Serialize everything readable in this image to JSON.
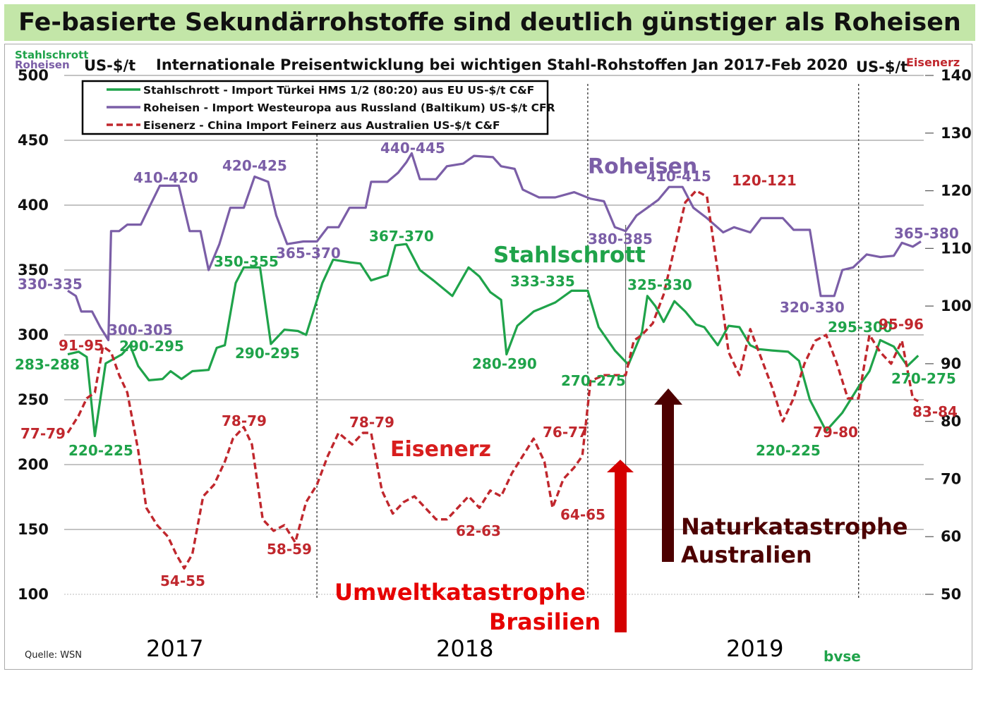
{
  "banner": {
    "title": "Fe-basierte Sekundärrohstoffe sind deutlich günstiger als Roheisen"
  },
  "chart_data": {
    "type": "line",
    "title": "Internationale Preisentwicklung bei wichtigen Stahl-Rohstoffen  Jan 2017-Feb 2020",
    "left_axis": {
      "series_tags": [
        "Stahlschrott",
        "Roheisen"
      ],
      "unit": "US-$/t",
      "range": [
        100,
        500
      ],
      "ticks": [
        "100",
        "150",
        "200",
        "250",
        "300",
        "350",
        "400",
        "450",
        "500"
      ]
    },
    "right_axis": {
      "series_tag": "Eisenerz",
      "unit": "US-$/t",
      "range": [
        50,
        140
      ],
      "ticks": [
        "50",
        "60",
        "70",
        "80",
        "90",
        "100",
        "110",
        "120",
        "130",
        "140"
      ]
    },
    "x": {
      "start": 2017.0,
      "end": 2020.15,
      "year_labels": [
        "2017",
        "2018",
        "2019"
      ]
    },
    "legend_entries": [
      "Stahlschrott - Import Türkei HMS 1/2 (80:20) aus EU US-$/t C&F",
      "Roheisen - Import Westeuropa aus Russland (Baltikum) US-$/t CFR",
      "Eisenerz - China Import Feinerz aus Australien US-$/t C&F"
    ],
    "series": [
      {
        "name": "Stahlschrott",
        "axis": "left",
        "color": "#1fa34a",
        "style": "solid",
        "points": [
          [
            2017.0,
            285
          ],
          [
            2017.04,
            287
          ],
          [
            2017.07,
            283
          ],
          [
            2017.1,
            222
          ],
          [
            2017.14,
            278
          ],
          [
            2017.2,
            285
          ],
          [
            2017.23,
            292
          ],
          [
            2017.26,
            276
          ],
          [
            2017.3,
            265
          ],
          [
            2017.35,
            266
          ],
          [
            2017.38,
            272
          ],
          [
            2017.42,
            266
          ],
          [
            2017.46,
            272
          ],
          [
            2017.52,
            273
          ],
          [
            2017.55,
            290
          ],
          [
            2017.58,
            292
          ],
          [
            2017.62,
            340
          ],
          [
            2017.65,
            352
          ],
          [
            2017.71,
            352
          ],
          [
            2017.75,
            293
          ],
          [
            2017.8,
            304
          ],
          [
            2017.85,
            303
          ],
          [
            2017.88,
            300
          ],
          [
            2017.94,
            340
          ],
          [
            2017.98,
            358
          ],
          [
            2018.04,
            356
          ],
          [
            2018.08,
            355
          ],
          [
            2018.12,
            342
          ],
          [
            2018.18,
            346
          ],
          [
            2018.21,
            369
          ],
          [
            2018.25,
            370
          ],
          [
            2018.3,
            350
          ],
          [
            2018.35,
            342
          ],
          [
            2018.42,
            330
          ],
          [
            2018.48,
            352
          ],
          [
            2018.52,
            345
          ],
          [
            2018.56,
            333
          ],
          [
            2018.6,
            327
          ],
          [
            2018.62,
            285
          ],
          [
            2018.66,
            307
          ],
          [
            2018.72,
            318
          ],
          [
            2018.8,
            325
          ],
          [
            2018.86,
            334
          ],
          [
            2018.92,
            334
          ],
          [
            2018.96,
            306
          ],
          [
            2019.02,
            288
          ],
          [
            2019.07,
            277
          ],
          [
            2019.12,
            302
          ],
          [
            2019.14,
            330
          ],
          [
            2019.17,
            322
          ],
          [
            2019.2,
            310
          ],
          [
            2019.24,
            326
          ],
          [
            2019.28,
            318
          ],
          [
            2019.32,
            308
          ],
          [
            2019.35,
            306
          ],
          [
            2019.4,
            292
          ],
          [
            2019.44,
            307
          ],
          [
            2019.48,
            306
          ],
          [
            2019.52,
            292
          ],
          [
            2019.55,
            289
          ],
          [
            2019.6,
            288
          ],
          [
            2019.66,
            287
          ],
          [
            2019.7,
            280
          ],
          [
            2019.74,
            250
          ],
          [
            2019.8,
            226
          ],
          [
            2019.86,
            240
          ],
          [
            2019.92,
            260
          ],
          [
            2019.96,
            272
          ],
          [
            2020.0,
            296
          ],
          [
            2020.05,
            291
          ],
          [
            2020.1,
            276
          ],
          [
            2020.14,
            284
          ]
        ]
      },
      {
        "name": "Roheisen",
        "axis": "left",
        "color": "#7b5ea7",
        "style": "solid",
        "points": [
          [
            2017.0,
            334
          ],
          [
            2017.03,
            330
          ],
          [
            2017.05,
            318
          ],
          [
            2017.09,
            318
          ],
          [
            2017.12,
            306
          ],
          [
            2017.15,
            296
          ],
          [
            2017.16,
            380
          ],
          [
            2017.19,
            380
          ],
          [
            2017.22,
            385
          ],
          [
            2017.27,
            385
          ],
          [
            2017.3,
            398
          ],
          [
            2017.34,
            415
          ],
          [
            2017.41,
            415
          ],
          [
            2017.45,
            380
          ],
          [
            2017.49,
            380
          ],
          [
            2017.52,
            350
          ],
          [
            2017.56,
            370
          ],
          [
            2017.6,
            398
          ],
          [
            2017.65,
            398
          ],
          [
            2017.69,
            422
          ],
          [
            2017.74,
            418
          ],
          [
            2017.77,
            392
          ],
          [
            2017.81,
            370
          ],
          [
            2017.87,
            372
          ],
          [
            2017.92,
            372
          ],
          [
            2017.96,
            383
          ],
          [
            2018.0,
            383
          ],
          [
            2018.04,
            398
          ],
          [
            2018.1,
            398
          ],
          [
            2018.12,
            418
          ],
          [
            2018.18,
            418
          ],
          [
            2018.22,
            425
          ],
          [
            2018.25,
            433
          ],
          [
            2018.27,
            440
          ],
          [
            2018.3,
            420
          ],
          [
            2018.36,
            420
          ],
          [
            2018.4,
            430
          ],
          [
            2018.46,
            432
          ],
          [
            2018.5,
            438
          ],
          [
            2018.57,
            437
          ],
          [
            2018.6,
            430
          ],
          [
            2018.65,
            428
          ],
          [
            2018.68,
            412
          ],
          [
            2018.74,
            406
          ],
          [
            2018.8,
            406
          ],
          [
            2018.87,
            410
          ],
          [
            2018.93,
            405
          ],
          [
            2018.98,
            403
          ],
          [
            2019.02,
            383
          ],
          [
            2019.06,
            380
          ],
          [
            2019.1,
            392
          ],
          [
            2019.14,
            398
          ],
          [
            2019.18,
            404
          ],
          [
            2019.22,
            414
          ],
          [
            2019.27,
            414
          ],
          [
            2019.31,
            398
          ],
          [
            2019.36,
            390
          ],
          [
            2019.42,
            379
          ],
          [
            2019.46,
            383
          ],
          [
            2019.52,
            379
          ],
          [
            2019.56,
            390
          ],
          [
            2019.64,
            390
          ],
          [
            2019.68,
            381
          ],
          [
            2019.74,
            381
          ],
          [
            2019.78,
            330
          ],
          [
            2019.83,
            330
          ],
          [
            2019.86,
            350
          ],
          [
            2019.9,
            352
          ],
          [
            2019.95,
            362
          ],
          [
            2020.0,
            360
          ],
          [
            2020.05,
            361
          ],
          [
            2020.08,
            371
          ],
          [
            2020.12,
            368
          ],
          [
            2020.15,
            372
          ]
        ]
      },
      {
        "name": "Eisenerz",
        "axis": "right",
        "color": "#c0272d",
        "style": "dashed",
        "points": [
          [
            2017.0,
            78
          ],
          [
            2017.04,
            81
          ],
          [
            2017.07,
            84
          ],
          [
            2017.1,
            85
          ],
          [
            2017.13,
            93
          ],
          [
            2017.16,
            92
          ],
          [
            2017.19,
            88
          ],
          [
            2017.22,
            85
          ],
          [
            2017.26,
            75
          ],
          [
            2017.29,
            65
          ],
          [
            2017.33,
            62
          ],
          [
            2017.37,
            60
          ],
          [
            2017.4,
            57
          ],
          [
            2017.43,
            54.5
          ],
          [
            2017.46,
            57
          ],
          [
            2017.5,
            67
          ],
          [
            2017.54,
            69
          ],
          [
            2017.58,
            73
          ],
          [
            2017.61,
            77
          ],
          [
            2017.65,
            79
          ],
          [
            2017.68,
            76
          ],
          [
            2017.72,
            63
          ],
          [
            2017.76,
            61
          ],
          [
            2017.8,
            62
          ],
          [
            2017.84,
            59
          ],
          [
            2017.88,
            66
          ],
          [
            2017.92,
            69
          ],
          [
            2017.96,
            74
          ],
          [
            2018.0,
            78
          ],
          [
            2018.05,
            76
          ],
          [
            2018.09,
            78
          ],
          [
            2018.12,
            78
          ],
          [
            2018.16,
            68
          ],
          [
            2018.2,
            64
          ],
          [
            2018.24,
            66
          ],
          [
            2018.28,
            67
          ],
          [
            2018.32,
            65
          ],
          [
            2018.36,
            63
          ],
          [
            2018.4,
            63
          ],
          [
            2018.44,
            65
          ],
          [
            2018.48,
            67
          ],
          [
            2018.52,
            65
          ],
          [
            2018.56,
            68
          ],
          [
            2018.6,
            67
          ],
          [
            2018.64,
            71
          ],
          [
            2018.68,
            74
          ],
          [
            2018.72,
            77
          ],
          [
            2018.76,
            73
          ],
          [
            2018.79,
            65
          ],
          [
            2018.83,
            70
          ],
          [
            2018.87,
            72
          ],
          [
            2018.9,
            74
          ],
          [
            2018.93,
            87
          ],
          [
            2018.98,
            88
          ],
          [
            2019.02,
            88
          ],
          [
            2019.06,
            88
          ],
          [
            2019.09,
            94
          ],
          [
            2019.12,
            95
          ],
          [
            2019.16,
            97
          ],
          [
            2019.2,
            102
          ],
          [
            2019.24,
            110
          ],
          [
            2019.28,
            118
          ],
          [
            2019.32,
            120
          ],
          [
            2019.36,
            119
          ],
          [
            2019.4,
            106
          ],
          [
            2019.44,
            92
          ],
          [
            2019.48,
            88
          ],
          [
            2019.52,
            96
          ],
          [
            2019.56,
            91
          ],
          [
            2019.6,
            86
          ],
          [
            2019.64,
            80
          ],
          [
            2019.68,
            84
          ],
          [
            2019.72,
            90
          ],
          [
            2019.76,
            94
          ],
          [
            2019.8,
            95
          ],
          [
            2019.84,
            90
          ],
          [
            2019.88,
            84
          ],
          [
            2019.92,
            84
          ],
          [
            2019.96,
            95
          ],
          [
            2020.0,
            92
          ],
          [
            2020.04,
            90
          ],
          [
            2020.08,
            94
          ],
          [
            2020.12,
            84
          ],
          [
            2020.14,
            83.5
          ]
        ]
      }
    ],
    "annotations": [
      {
        "text": "Roheisen",
        "kind": "series",
        "color": "#7b5ea7"
      },
      {
        "text": "Stahlschrott",
        "kind": "series",
        "color": "#1fa34a"
      },
      {
        "text": "Eisenerz",
        "kind": "series",
        "color": "#d81e1e"
      },
      {
        "text": "330-335",
        "color": "#7b5ea7"
      },
      {
        "text": "410-420",
        "color": "#7b5ea7"
      },
      {
        "text": "420-425",
        "color": "#7b5ea7"
      },
      {
        "text": "365-370",
        "color": "#7b5ea7"
      },
      {
        "text": "440-445",
        "color": "#7b5ea7"
      },
      {
        "text": "410-415",
        "color": "#7b5ea7"
      },
      {
        "text": "380-385",
        "color": "#7b5ea7"
      },
      {
        "text": "365-380",
        "color": "#7b5ea7"
      },
      {
        "text": "320-330",
        "color": "#7b5ea7"
      },
      {
        "text": "300-305",
        "color": "#7b5ea7"
      },
      {
        "text": "283-288",
        "color": "#1fa34a"
      },
      {
        "text": "290-295",
        "color": "#1fa34a"
      },
      {
        "text": "220-225",
        "color": "#1fa34a"
      },
      {
        "text": "350-355",
        "color": "#1fa34a"
      },
      {
        "text": "290-295",
        "color": "#1fa34a"
      },
      {
        "text": "367-370",
        "color": "#1fa34a"
      },
      {
        "text": "333-335",
        "color": "#1fa34a"
      },
      {
        "text": "280-290",
        "color": "#1fa34a"
      },
      {
        "text": "270-275",
        "color": "#1fa34a"
      },
      {
        "text": "325-330",
        "color": "#1fa34a"
      },
      {
        "text": "295-300",
        "color": "#1fa34a"
      },
      {
        "text": "220-225",
        "color": "#1fa34a"
      },
      {
        "text": "270-275",
        "color": "#1fa34a"
      },
      {
        "text": "91-95",
        "color": "#c0272d"
      },
      {
        "text": "77-79",
        "color": "#c0272d"
      },
      {
        "text": "78-79",
        "color": "#c0272d"
      },
      {
        "text": "54-55",
        "color": "#c0272d"
      },
      {
        "text": "58-59",
        "color": "#c0272d"
      },
      {
        "text": "78-79",
        "color": "#c0272d"
      },
      {
        "text": "62-63",
        "color": "#c0272d"
      },
      {
        "text": "76-77",
        "color": "#c0272d"
      },
      {
        "text": "64-65",
        "color": "#c0272d"
      },
      {
        "text": "120-121",
        "color": "#c0272d"
      },
      {
        "text": "95-96",
        "color": "#c0272d"
      },
      {
        "text": "79-80",
        "color": "#c0272d"
      },
      {
        "text": "83-84",
        "color": "#c0272d"
      }
    ],
    "events": [
      {
        "lines": [
          "Umweltkatastrophe",
          "Brasilien"
        ],
        "date": 2019.04,
        "color": "#d40000"
      },
      {
        "lines": [
          "Naturkatastrophe",
          "Australien"
        ],
        "date": 2019.2,
        "color": "#4d0000"
      }
    ],
    "source": "Quelle: WSN",
    "brand": "bvse"
  }
}
